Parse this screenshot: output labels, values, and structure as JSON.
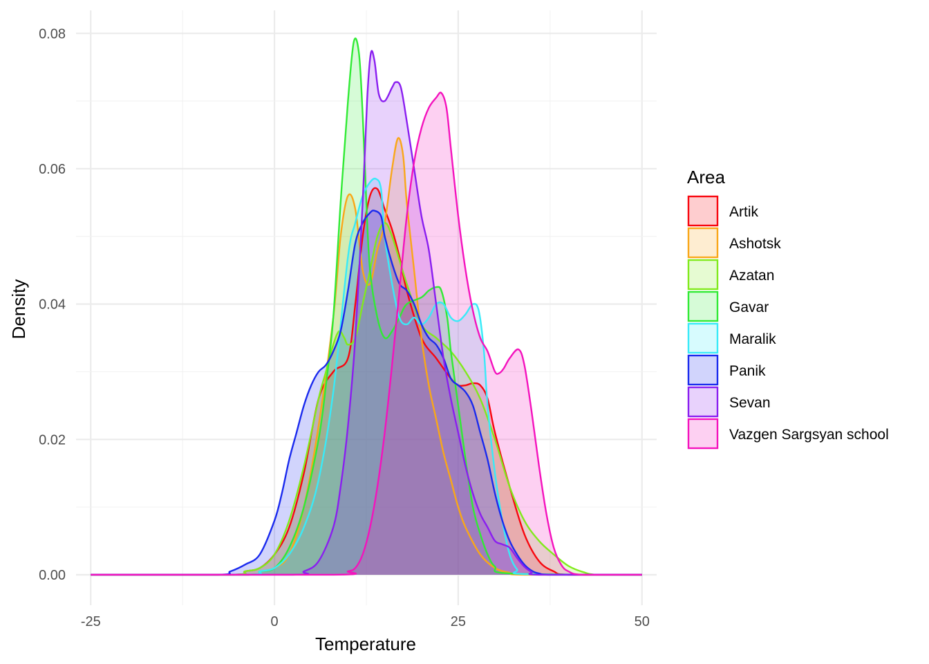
{
  "chart_data": {
    "type": "area",
    "subtype": "density",
    "title": "",
    "xlabel": "Temperature",
    "ylabel": "Density",
    "xlim": [
      -27,
      52
    ],
    "ylim": [
      -0.0045,
      0.0834
    ],
    "x_ticks": [
      -25,
      0,
      25,
      50
    ],
    "y_ticks": [
      0.0,
      0.02,
      0.04,
      0.06,
      0.08
    ],
    "x_tick_labels": [
      "-25",
      "0",
      "25",
      "50"
    ],
    "y_tick_labels": [
      "0.00",
      "0.02",
      "0.04",
      "0.06",
      "0.08"
    ],
    "grid": true,
    "legend": {
      "title": "Area",
      "position": "right"
    },
    "series": [
      {
        "name": "Artik",
        "color": "#F8070F",
        "x": [
          -25,
          -6,
          -4,
          -2,
          0,
          2,
          4,
          6,
          8,
          10,
          11,
          12,
          13,
          14,
          15,
          16,
          17,
          18,
          20,
          22,
          24,
          25,
          26,
          27,
          28,
          29,
          30,
          32,
          34,
          36,
          38,
          40,
          50
        ],
        "y": [
          0,
          0,
          0.0005,
          0.001,
          0.003,
          0.007,
          0.015,
          0.026,
          0.03,
          0.032,
          0.04,
          0.05,
          0.056,
          0.057,
          0.054,
          0.051,
          0.047,
          0.042,
          0.035,
          0.032,
          0.029,
          0.028,
          0.028,
          0.0283,
          0.028,
          0.026,
          0.021,
          0.013,
          0.006,
          0.002,
          0.0005,
          0,
          0
        ]
      },
      {
        "name": "Ashotsk",
        "color": "#F9A719",
        "x": [
          -25,
          -4,
          -2,
          0,
          2,
          4,
          6,
          8,
          9,
          10,
          11,
          12,
          13,
          14,
          15,
          16,
          16.8,
          17.5,
          18,
          19,
          20,
          21,
          22,
          23,
          24,
          25,
          26,
          28,
          30,
          32,
          34,
          50
        ],
        "y": [
          0,
          0,
          0.0005,
          0.001,
          0.003,
          0.01,
          0.022,
          0.038,
          0.05,
          0.056,
          0.054,
          0.045,
          0.043,
          0.048,
          0.052,
          0.06,
          0.0645,
          0.062,
          0.055,
          0.045,
          0.035,
          0.028,
          0.023,
          0.018,
          0.014,
          0.01,
          0.007,
          0.003,
          0.001,
          0.0003,
          0,
          0
        ]
      },
      {
        "name": "Azatan",
        "color": "#81EA1C",
        "x": [
          -25,
          -6,
          -4,
          -2,
          0,
          2,
          4,
          6,
          7,
          8,
          8.8,
          9.5,
          10,
          11,
          12,
          13,
          14,
          15,
          16,
          18,
          20,
          22,
          24,
          26,
          28,
          30,
          32,
          34,
          36,
          38,
          40,
          42,
          44,
          50
        ],
        "y": [
          0,
          0,
          0.0005,
          0.001,
          0.003,
          0.008,
          0.016,
          0.026,
          0.03,
          0.034,
          0.036,
          0.035,
          0.034,
          0.035,
          0.04,
          0.045,
          0.05,
          0.052,
          0.05,
          0.043,
          0.037,
          0.035,
          0.033,
          0.03,
          0.026,
          0.02,
          0.013,
          0.008,
          0.005,
          0.003,
          0.0013,
          0.0004,
          0,
          0
        ]
      },
      {
        "name": "Gavar",
        "color": "#31EA35",
        "x": [
          -25,
          -4,
          -2,
          0,
          2,
          4,
          6,
          7,
          8,
          9,
          10,
          10.8,
          11.5,
          12,
          12.5,
          13,
          14,
          15,
          16,
          17,
          18,
          20,
          21,
          22,
          22.7,
          23.5,
          24,
          25,
          26,
          27,
          28,
          29,
          30,
          32,
          50
        ],
        "y": [
          0,
          0,
          0.0005,
          0.001,
          0.004,
          0.01,
          0.02,
          0.028,
          0.038,
          0.055,
          0.07,
          0.0788,
          0.077,
          0.068,
          0.055,
          0.045,
          0.038,
          0.035,
          0.036,
          0.038,
          0.04,
          0.041,
          0.042,
          0.0425,
          0.042,
          0.038,
          0.033,
          0.025,
          0.017,
          0.01,
          0.006,
          0.003,
          0.0012,
          0.0002,
          0
        ]
      },
      {
        "name": "Maralik",
        "color": "#39EAF8",
        "x": [
          -25,
          -4,
          -2,
          0,
          2,
          4,
          6,
          8,
          10,
          11,
          12,
          13,
          13.8,
          14.5,
          15,
          16,
          17,
          18,
          19,
          20,
          21,
          22,
          23,
          24,
          25,
          26,
          27,
          27.8,
          28.5,
          29,
          30,
          31,
          32,
          33,
          34,
          50
        ],
        "y": [
          0,
          0,
          0.0005,
          0.001,
          0.003,
          0.007,
          0.014,
          0.027,
          0.047,
          0.052,
          0.056,
          0.058,
          0.0585,
          0.057,
          0.05,
          0.043,
          0.038,
          0.037,
          0.038,
          0.037,
          0.038,
          0.04,
          0.04,
          0.038,
          0.0375,
          0.0385,
          0.04,
          0.039,
          0.033,
          0.025,
          0.015,
          0.008,
          0.003,
          0.0008,
          0.0001,
          0
        ]
      },
      {
        "name": "Panik",
        "color": "#1A2AEE",
        "x": [
          -25,
          -8,
          -6,
          -4,
          -2,
          0,
          1,
          2,
          3,
          4,
          5,
          6,
          7,
          8,
          9,
          10,
          11,
          12,
          13,
          13.6,
          14.5,
          15,
          16,
          17,
          18,
          19,
          20,
          21,
          22,
          23,
          24,
          25,
          26,
          27,
          28,
          29,
          30,
          31,
          32,
          33,
          34,
          35,
          36,
          38,
          50
        ],
        "y": [
          0,
          0,
          0.0005,
          0.0015,
          0.003,
          0.008,
          0.012,
          0.017,
          0.021,
          0.025,
          0.028,
          0.03,
          0.031,
          0.033,
          0.036,
          0.042,
          0.049,
          0.052,
          0.0535,
          0.0538,
          0.053,
          0.05,
          0.046,
          0.043,
          0.042,
          0.04,
          0.037,
          0.035,
          0.034,
          0.032,
          0.029,
          0.028,
          0.027,
          0.025,
          0.021,
          0.017,
          0.012,
          0.008,
          0.005,
          0.003,
          0.0015,
          0.0006,
          0.0002,
          0,
          0
        ]
      },
      {
        "name": "Sevan",
        "color": "#8A1EF0",
        "x": [
          -25,
          2,
          4,
          6,
          8,
          9,
          10,
          11,
          12,
          12.6,
          13.1,
          13.6,
          14.2,
          15,
          16,
          16.5,
          17.2,
          18,
          19,
          20,
          21,
          22,
          23,
          24,
          25,
          26,
          27,
          28,
          29,
          30,
          31,
          32,
          33,
          34,
          35,
          36,
          50
        ],
        "y": [
          0,
          0,
          0.0005,
          0.002,
          0.007,
          0.013,
          0.022,
          0.035,
          0.055,
          0.07,
          0.077,
          0.076,
          0.071,
          0.07,
          0.072,
          0.0728,
          0.072,
          0.067,
          0.06,
          0.053,
          0.048,
          0.04,
          0.032,
          0.026,
          0.021,
          0.016,
          0.012,
          0.009,
          0.007,
          0.005,
          0.0045,
          0.004,
          0.0025,
          0.0012,
          0.0004,
          0,
          0
        ]
      },
      {
        "name": "Vazgen Sargsyan school",
        "color": "#F412BD",
        "x": [
          -25,
          8,
          10,
          11,
          12,
          13,
          14,
          15,
          16,
          17,
          18,
          19,
          20,
          21,
          22,
          22.7,
          23.4,
          24,
          25,
          26,
          27,
          28,
          29,
          30,
          30.6,
          31.2,
          32,
          33.2,
          34,
          35,
          36,
          37,
          38,
          39,
          40,
          42,
          50
        ],
        "y": [
          0,
          0,
          0.0005,
          0.001,
          0.003,
          0.007,
          0.013,
          0.021,
          0.031,
          0.042,
          0.053,
          0.061,
          0.066,
          0.069,
          0.0705,
          0.0712,
          0.069,
          0.063,
          0.053,
          0.045,
          0.039,
          0.035,
          0.033,
          0.03,
          0.0298,
          0.0305,
          0.032,
          0.0333,
          0.031,
          0.024,
          0.016,
          0.009,
          0.004,
          0.0015,
          0.0005,
          0,
          0
        ]
      }
    ]
  }
}
